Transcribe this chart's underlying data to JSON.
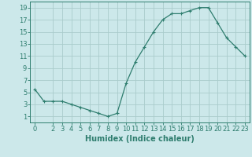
{
  "x": [
    0,
    1,
    2,
    3,
    4,
    5,
    6,
    7,
    8,
    9,
    10,
    11,
    12,
    13,
    14,
    15,
    16,
    17,
    18,
    19,
    20,
    21,
    22,
    23
  ],
  "y": [
    5.5,
    3.5,
    3.5,
    3.5,
    3.0,
    2.5,
    2.0,
    1.5,
    1.0,
    1.5,
    6.5,
    10.0,
    12.5,
    15.0,
    17.0,
    18.0,
    18.0,
    18.5,
    19.0,
    19.0,
    16.5,
    14.0,
    12.5,
    11.0
  ],
  "line_color": "#2e7d6e",
  "bg_color": "#cce8ea",
  "grid_color": "#aacccc",
  "xlabel": "Humidex (Indice chaleur)",
  "xlim": [
    -0.5,
    23.5
  ],
  "ylim": [
    0,
    20
  ],
  "yticks": [
    1,
    3,
    5,
    7,
    9,
    11,
    13,
    15,
    17,
    19
  ],
  "xticks": [
    0,
    2,
    3,
    4,
    5,
    6,
    7,
    8,
    9,
    10,
    11,
    12,
    13,
    14,
    15,
    16,
    17,
    18,
    19,
    20,
    21,
    22,
    23
  ],
  "marker": "+",
  "markersize": 3,
  "linewidth": 0.9,
  "xlabel_fontsize": 7,
  "tick_fontsize": 6
}
